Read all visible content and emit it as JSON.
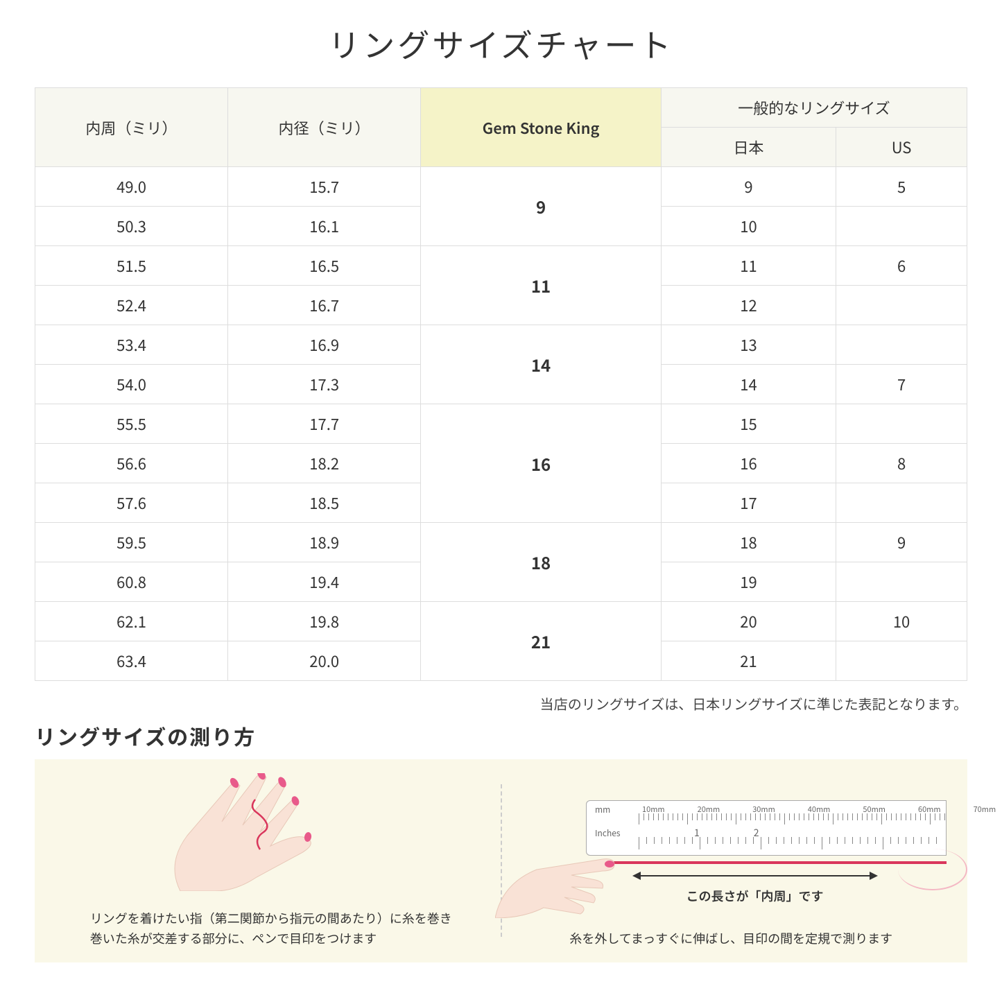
{
  "title": "リングサイズチャート",
  "table": {
    "headers": {
      "circumference": "内周（ミリ）",
      "diameter": "内径（ミリ）",
      "gsk": "Gem Stone King",
      "general": "一般的なリングサイズ",
      "japan": "日本",
      "us": "US"
    },
    "groups": [
      {
        "gsk": "9",
        "rows": [
          {
            "c": "49.0",
            "d": "15.7",
            "jp": "9",
            "us": "5"
          },
          {
            "c": "50.3",
            "d": "16.1",
            "jp": "10",
            "us": ""
          }
        ]
      },
      {
        "gsk": "11",
        "rows": [
          {
            "c": "51.5",
            "d": "16.5",
            "jp": "11",
            "us": "6"
          },
          {
            "c": "52.4",
            "d": "16.7",
            "jp": "12",
            "us": ""
          }
        ]
      },
      {
        "gsk": "14",
        "rows": [
          {
            "c": "53.4",
            "d": "16.9",
            "jp": "13",
            "us": ""
          },
          {
            "c": "54.0",
            "d": "17.3",
            "jp": "14",
            "us": "7"
          }
        ]
      },
      {
        "gsk": "16",
        "rows": [
          {
            "c": "55.5",
            "d": "17.7",
            "jp": "15",
            "us": ""
          },
          {
            "c": "56.6",
            "d": "18.2",
            "jp": "16",
            "us": "8"
          },
          {
            "c": "57.6",
            "d": "18.5",
            "jp": "17",
            "us": ""
          }
        ]
      },
      {
        "gsk": "18",
        "rows": [
          {
            "c": "59.5",
            "d": "18.9",
            "jp": "18",
            "us": "9"
          },
          {
            "c": "60.8",
            "d": "19.4",
            "jp": "19",
            "us": ""
          }
        ]
      },
      {
        "gsk": "21",
        "rows": [
          {
            "c": "62.1",
            "d": "19.8",
            "jp": "20",
            "us": "10"
          },
          {
            "c": "63.4",
            "d": "20.0",
            "jp": "21",
            "us": ""
          }
        ]
      }
    ]
  },
  "note": "当店のリングサイズは、日本リングサイズに準じた表記となります。",
  "howto": {
    "title": "リングサイズの測り方",
    "left_caption_1": "リングを着けたい指（第二関節から指元の間あたり）に糸を巻き",
    "left_caption_2": "巻いた糸が交差する部分に、ペンで目印をつけます",
    "right_arrow_label": "この長さが「内周」です",
    "right_caption": "糸を外してまっすぐに伸ばし、目印の間を定規で測ります",
    "ruler_mm": "mm",
    "ruler_in": "Inches",
    "mm_labels": [
      "10mm",
      "20mm",
      "30mm",
      "40mm",
      "50mm",
      "60mm",
      "70mm"
    ],
    "in_labels": [
      "1",
      "2"
    ]
  },
  "colors": {
    "header_bg": "#f7f7f0",
    "highlight_bg": "#f5f3c8",
    "howto_bg": "#faf8e8",
    "hand_skin": "#f9e2d6",
    "nail": "#e85a8a",
    "thread": "#d9365c"
  }
}
